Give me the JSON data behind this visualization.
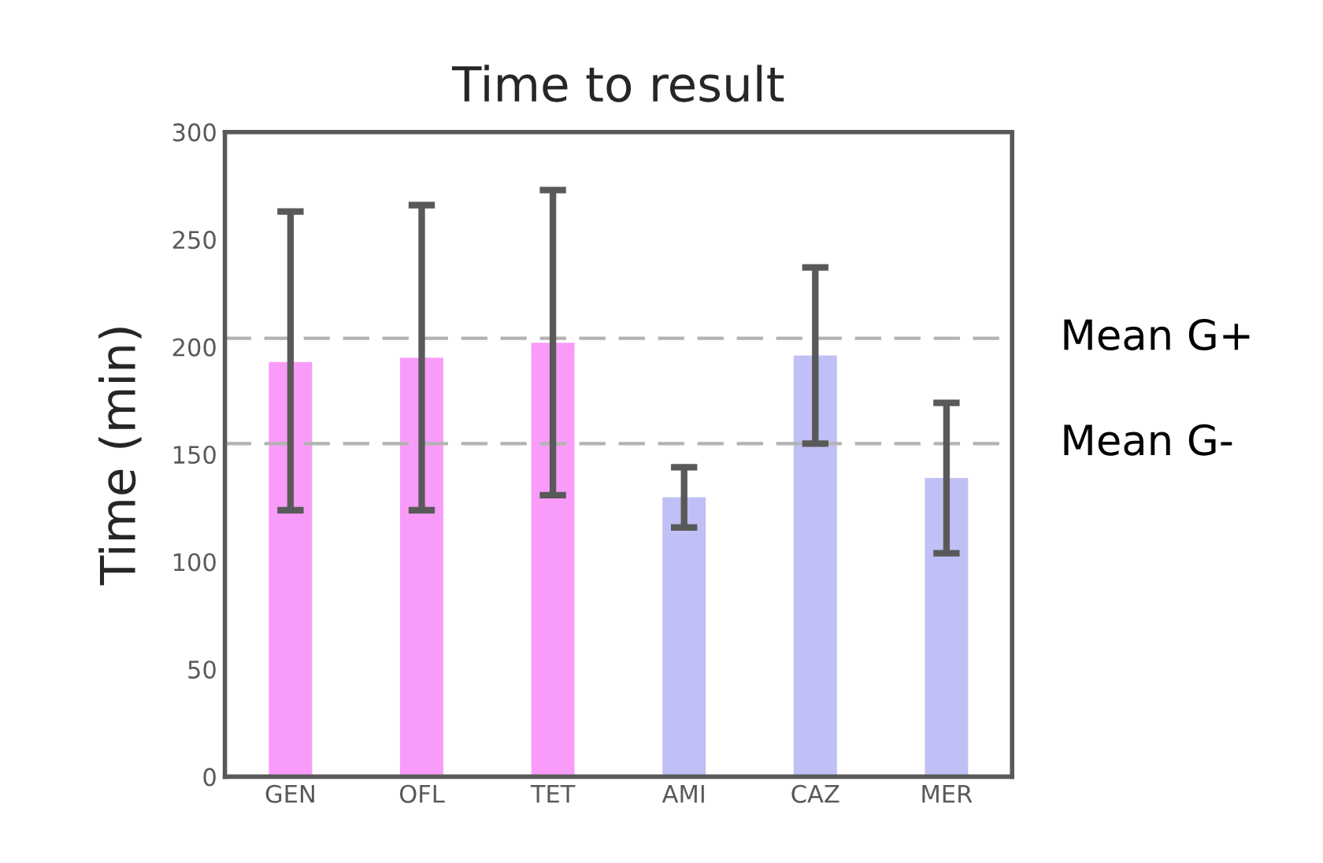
{
  "chart_data": {
    "type": "bar",
    "title": "Time to result",
    "ylabel": "Time (min)",
    "categories": [
      "GEN",
      "OFL",
      "TET",
      "AMI",
      "CAZ",
      "MER"
    ],
    "values": [
      193,
      195,
      202,
      130,
      196,
      139
    ],
    "colors": [
      "#f99cf9",
      "#f99cf9",
      "#f99cf9",
      "#c0c0f6",
      "#c0c0f6",
      "#c0c0f6"
    ],
    "errors": [
      [
        124,
        263
      ],
      [
        124,
        266
      ],
      [
        131,
        273
      ],
      [
        116,
        144
      ],
      [
        155,
        237
      ],
      [
        104,
        174
      ]
    ],
    "ylim": [
      0,
      300
    ],
    "yticks": [
      0,
      50,
      100,
      150,
      200,
      250,
      300
    ],
    "grid": false,
    "legend": false,
    "ref_lines": [
      {
        "axis": "y",
        "value": 204,
        "label": "Mean G+",
        "color": "#b3b3b3",
        "line_style": "dashed"
      },
      {
        "axis": "y",
        "value": 155,
        "label": "Mean G-",
        "color": "#b3b3b3",
        "line_style": "dashed"
      }
    ]
  }
}
